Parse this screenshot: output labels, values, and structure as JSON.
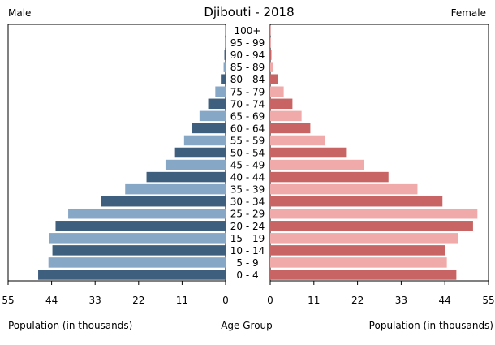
{
  "chart_data": {
    "type": "bar",
    "title": "Djibouti - 2018",
    "left_header": "Male",
    "right_header": "Female",
    "categories": [
      "100+",
      "95 - 99",
      "90 - 94",
      "85 - 89",
      "80 - 84",
      "75 - 79",
      "70 - 74",
      "65 - 69",
      "60 - 64",
      "55 - 59",
      "50 - 54",
      "45 - 49",
      "40 - 44",
      "35 - 39",
      "30 - 34",
      "25 - 29",
      "20 - 24",
      "15 - 19",
      "10 - 14",
      "5 - 9",
      "0 - 4"
    ],
    "series": [
      {
        "name": "Male",
        "values": [
          0.1,
          0.2,
          0.3,
          0.5,
          1.2,
          2.6,
          4.4,
          6.6,
          8.5,
          10.5,
          12.8,
          15.2,
          20.0,
          25.4,
          31.6,
          39.8,
          43.0,
          44.6,
          43.8,
          44.8,
          47.4
        ]
      },
      {
        "name": "Female",
        "values": [
          0.1,
          0.2,
          0.3,
          0.7,
          2.0,
          3.4,
          5.6,
          7.9,
          10.1,
          13.8,
          19.1,
          23.6,
          29.8,
          37.1,
          43.4,
          52.2,
          51.1,
          47.4,
          44.0,
          44.5,
          46.9
        ]
      }
    ],
    "ticks": [
      55,
      44,
      33,
      22,
      11,
      0
    ],
    "tick_labels_left": [
      "55",
      "44",
      "33",
      "22",
      "11",
      "0"
    ],
    "tick_labels_right": [
      "0",
      "11",
      "22",
      "33",
      "44",
      "55"
    ],
    "xlim": [
      0,
      55
    ],
    "xlabel_left": "Population (in thousands)",
    "xlabel_center": "Age Group",
    "xlabel_right": "Population (in thousands)",
    "grid": false,
    "colors": {
      "male_dark": "#3f5f7f",
      "male_light": "#87a7c7",
      "female_dark": "#c86464",
      "female_light": "#f0aaaa",
      "frame": "#000000"
    }
  }
}
